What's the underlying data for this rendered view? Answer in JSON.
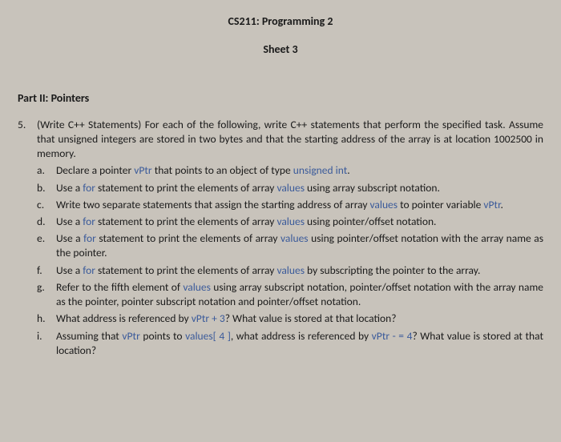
{
  "header": {
    "course": "CS211: Programming 2",
    "sheet": "Sheet 3"
  },
  "part": "Part II: Pointers",
  "question": {
    "num": "5.",
    "intro1": "(Write C++ Statements) For each of the following, write C++ statements that perform the specified task. Assume that unsigned integers are stored in two bytes and that the starting address of the array is at location 1002500 in memory."
  },
  "subs": {
    "a": {
      "l": "a.",
      "p1": "Declare a pointer ",
      "c1": "vPtr",
      "p2": " that points to an object of type ",
      "c2": "unsigned int",
      "p3": "."
    },
    "b": {
      "l": "b.",
      "p1": "Use a ",
      "c1": "for",
      "p2": " statement to print the elements of array ",
      "c2": "values",
      "p3": " using array subscript notation."
    },
    "c": {
      "l": "c.",
      "p1": "Write two separate statements that assign the starting address of array ",
      "c1": "values",
      "p2": " to pointer variable ",
      "c2": "vPtr",
      "p3": "."
    },
    "d": {
      "l": "d.",
      "p1": "Use a ",
      "c1": "for",
      "p2": " statement to print the elements of array ",
      "c2": "values",
      "p3": " using pointer/offset notation."
    },
    "e": {
      "l": "e.",
      "p1": "Use a ",
      "c1": "for",
      "p2": " statement to print the elements of array ",
      "c2": "values",
      "p3": " using pointer/offset notation with the array name as the pointer."
    },
    "f": {
      "l": "f.",
      "p1": "Use a ",
      "c1": "for",
      "p2": " statement to print the elements of array ",
      "c2": "values",
      "p3": " by subscripting the pointer to the array."
    },
    "g": {
      "l": "g.",
      "p1": "Refer to the fifth element of ",
      "c1": "values",
      "p2": " using array subscript notation, pointer/offset notation with the array name as the pointer, pointer subscript notation and pointer/offset notation."
    },
    "h": {
      "l": "h.",
      "p1": "What address is referenced by ",
      "c1": "vPtr + 3",
      "p2": "? What value is stored at that location?"
    },
    "i": {
      "l": "i.",
      "p1": "Assuming that ",
      "c1": "vPtr",
      "p2": " points to ",
      "c2": "values[ 4 ]",
      "p3": ", what address is referenced by ",
      "c3": "vPtr - = 4",
      "p4": "? What value is stored at that location?"
    }
  }
}
